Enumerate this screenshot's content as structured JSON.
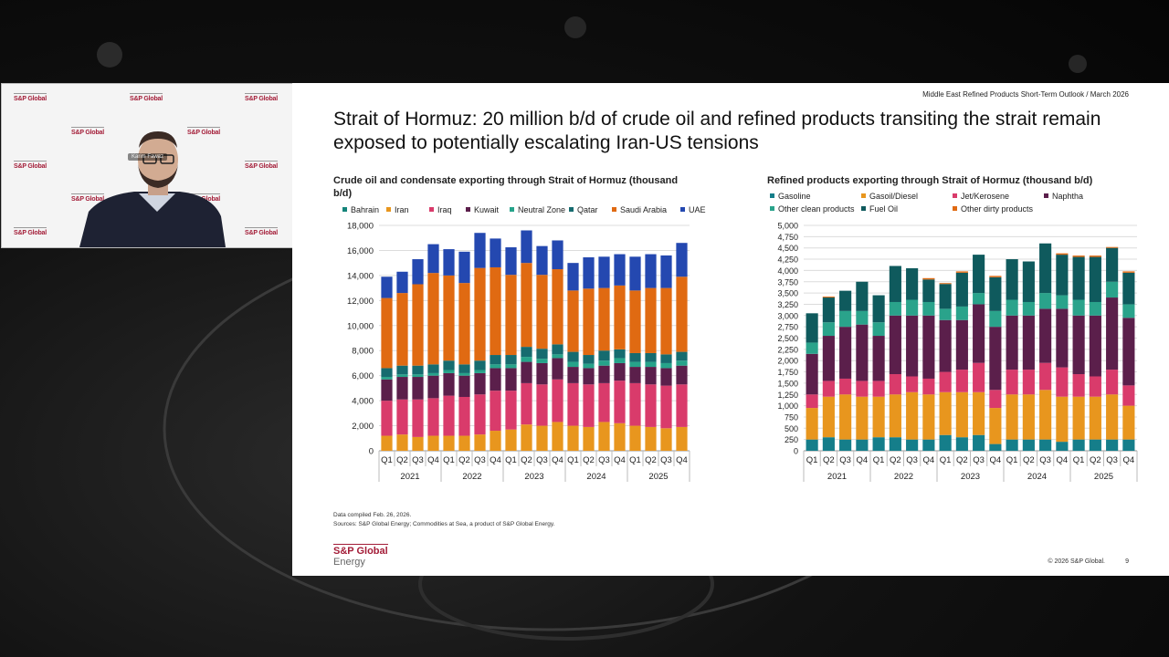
{
  "colors": {
    "bahrain": "#14847a",
    "iran": "#e8961e",
    "iraq": "#d93b6b",
    "kuwait": "#5b1f4b",
    "neutral_zone": "#26a38a",
    "qatar": "#166b6f",
    "saudi_arabia": "#e06a12",
    "uae": "#2448b0",
    "gasoline": "#157e8a",
    "gasoil": "#e8961e",
    "jet": "#d93b6b",
    "naphtha": "#5b1f4b",
    "other_clean": "#2aa38b",
    "fuel_oil": "#0f5a5d",
    "other_dirty": "#e06a12"
  },
  "webcam": {
    "watermark": "S&P Global",
    "speaker_name": "Karim Fawaz"
  },
  "slide": {
    "header_note": "Middle East Refined Products Short-Term Outlook / March 2026",
    "title": "Strait of Hormuz: 20 million b/d of crude oil and refined products transiting the strait remain exposed to potentially escalating Iran-US tensions",
    "footnote_1": "Data compiled Feb. 26, 2026.",
    "footnote_2": "Sources: S&P Global Energy; Commodities at Sea, a product of S&P Global Energy.",
    "logo_line1": "S&P Global",
    "logo_line2": "Energy",
    "copyright": "© 2026 S&P Global.",
    "page_number": "9"
  },
  "chart_data": [
    {
      "type": "bar",
      "stacked": true,
      "title": "Crude oil and condensate exporting through Strait of Hormuz (thousand b/d)",
      "categories": [
        "Q1",
        "Q2",
        "Q3",
        "Q4",
        "Q1",
        "Q2",
        "Q3",
        "Q4",
        "Q1",
        "Q2",
        "Q3",
        "Q4",
        "Q1",
        "Q2",
        "Q3",
        "Q4",
        "Q1",
        "Q2",
        "Q3",
        "Q4"
      ],
      "groups": [
        "2021",
        "2022",
        "2023",
        "2024",
        "2025"
      ],
      "ylim": [
        0,
        18000
      ],
      "yticks": [
        "0",
        "2,000",
        "4,000",
        "6,000",
        "8,000",
        "10,000",
        "12,000",
        "14,000",
        "16,000",
        "18,000"
      ],
      "legend_position": "top",
      "series": [
        {
          "name": "Bahrain",
          "color_key": "bahrain",
          "values": [
            0,
            0,
            0,
            0,
            0,
            0,
            0,
            0,
            0,
            0,
            0,
            0,
            0,
            0,
            0,
            0,
            0,
            0,
            0,
            0
          ]
        },
        {
          "name": "Iran",
          "color_key": "iran",
          "values": [
            1200,
            1300,
            1100,
            1200,
            1200,
            1200,
            1300,
            1600,
            1700,
            2100,
            2000,
            2300,
            2000,
            1900,
            2300,
            2200,
            2000,
            1900,
            1800,
            1900
          ]
        },
        {
          "name": "Iraq",
          "color_key": "iraq",
          "values": [
            2800,
            2800,
            3000,
            3000,
            3200,
            3100,
            3200,
            3200,
            3100,
            3300,
            3300,
            3400,
            3400,
            3400,
            3100,
            3400,
            3400,
            3400,
            3400,
            3400
          ]
        },
        {
          "name": "Kuwait",
          "color_key": "kuwait",
          "values": [
            1700,
            1800,
            1800,
            1800,
            1800,
            1700,
            1700,
            1800,
            1800,
            1700,
            1700,
            1700,
            1300,
            1300,
            1400,
            1400,
            1300,
            1400,
            1400,
            1500
          ]
        },
        {
          "name": "Neutral Zone",
          "color_key": "neutral_zone",
          "values": [
            200,
            200,
            200,
            200,
            250,
            200,
            250,
            300,
            300,
            400,
            350,
            300,
            400,
            350,
            400,
            400,
            400,
            400,
            400,
            400
          ]
        },
        {
          "name": "Qatar",
          "color_key": "qatar",
          "values": [
            700,
            700,
            700,
            700,
            750,
            700,
            750,
            750,
            750,
            800,
            800,
            800,
            800,
            700,
            800,
            700,
            700,
            700,
            700,
            700
          ]
        },
        {
          "name": "Saudi Arabia",
          "color_key": "saudi_arabia",
          "values": [
            5600,
            5800,
            6500,
            7300,
            6800,
            6500,
            7400,
            7000,
            6400,
            6700,
            5900,
            6000,
            4900,
            5300,
            5000,
            5100,
            5000,
            5200,
            5300,
            6000
          ]
        },
        {
          "name": "UAE",
          "color_key": "uae",
          "values": [
            1700,
            1700,
            2000,
            2300,
            2100,
            2500,
            2800,
            2300,
            2200,
            2600,
            2300,
            2300,
            2200,
            2500,
            2500,
            2500,
            2700,
            2700,
            2600,
            2700
          ]
        }
      ]
    },
    {
      "type": "bar",
      "stacked": true,
      "title": "Refined products exporting through Strait of Hormuz (thousand b/d)",
      "categories": [
        "Q1",
        "Q2",
        "Q3",
        "Q4",
        "Q1",
        "Q2",
        "Q3",
        "Q4",
        "Q1",
        "Q2",
        "Q3",
        "Q4",
        "Q1",
        "Q2",
        "Q3",
        "Q4",
        "Q1",
        "Q2",
        "Q3",
        "Q4"
      ],
      "groups": [
        "2021",
        "2022",
        "2023",
        "2024",
        "2025"
      ],
      "ylim": [
        0,
        5000
      ],
      "yticks": [
        "0",
        "250",
        "500",
        "750",
        "1,000",
        "1,250",
        "1,500",
        "1,750",
        "2,000",
        "2,250",
        "2,500",
        "2,750",
        "3,000",
        "3,250",
        "3,500",
        "3,750",
        "4,000",
        "4,250",
        "4,500",
        "4,750",
        "5,000"
      ],
      "legend_position": "top",
      "series": [
        {
          "name": "Gasoline",
          "color_key": "gasoline",
          "values": [
            250,
            300,
            250,
            250,
            300,
            300,
            250,
            250,
            350,
            300,
            350,
            150,
            250,
            250,
            250,
            200,
            250,
            250,
            250,
            250
          ]
        },
        {
          "name": "Gasoil/Diesel",
          "color_key": "gasoil",
          "values": [
            700,
            900,
            1000,
            950,
            900,
            950,
            1050,
            1000,
            950,
            1000,
            950,
            800,
            1000,
            1000,
            1100,
            1000,
            950,
            950,
            1000,
            750
          ]
        },
        {
          "name": "Jet/Kerosene",
          "color_key": "jet",
          "values": [
            300,
            350,
            350,
            350,
            350,
            450,
            350,
            350,
            450,
            500,
            650,
            400,
            550,
            550,
            600,
            650,
            500,
            450,
            550,
            450
          ]
        },
        {
          "name": "Naphtha",
          "color_key": "naphtha",
          "values": [
            900,
            1000,
            1150,
            1250,
            1000,
            1300,
            1350,
            1400,
            1150,
            1100,
            1300,
            1400,
            1200,
            1200,
            1200,
            1300,
            1300,
            1350,
            1600,
            1500
          ]
        },
        {
          "name": "Other clean products",
          "color_key": "other_clean",
          "values": [
            250,
            300,
            350,
            300,
            300,
            300,
            350,
            300,
            250,
            300,
            250,
            350,
            350,
            300,
            350,
            300,
            350,
            300,
            350,
            300
          ]
        },
        {
          "name": "Fuel Oil",
          "color_key": "fuel_oil",
          "values": [
            650,
            550,
            450,
            650,
            600,
            800,
            700,
            500,
            550,
            750,
            850,
            750,
            900,
            900,
            1100,
            900,
            950,
            1000,
            750,
            700
          ]
        },
        {
          "name": "Other dirty products",
          "color_key": "other_dirty",
          "values": [
            0,
            20,
            0,
            0,
            0,
            0,
            0,
            30,
            20,
            30,
            0,
            30,
            0,
            0,
            0,
            30,
            30,
            30,
            20,
            30
          ]
        }
      ]
    }
  ]
}
